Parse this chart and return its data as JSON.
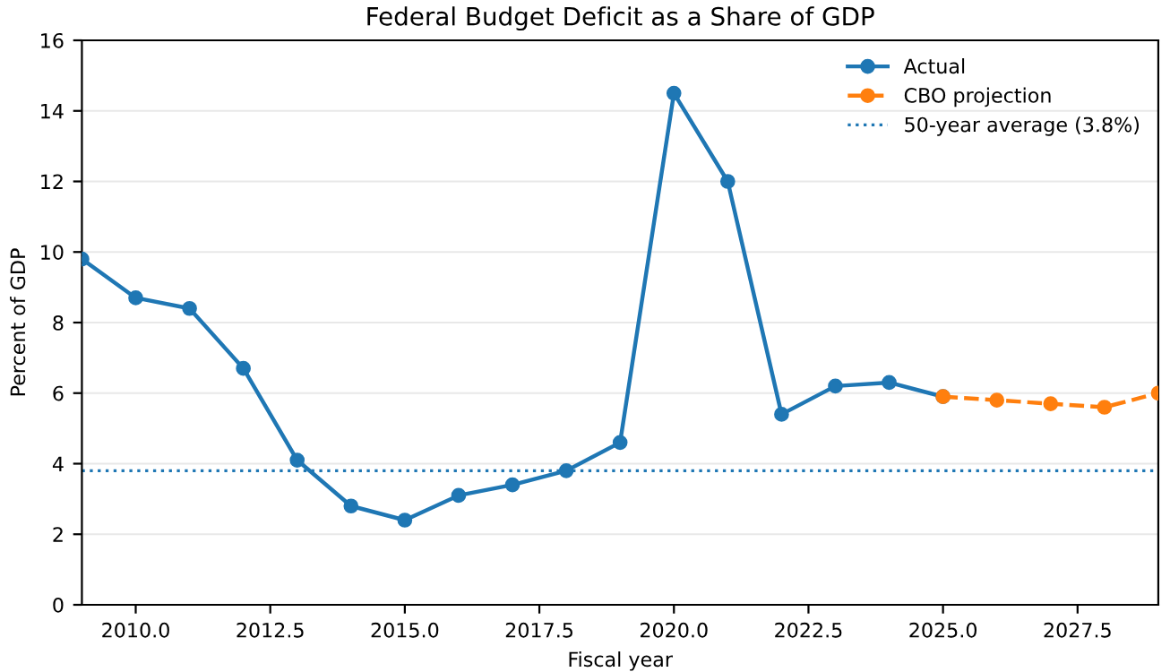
{
  "chart_data": {
    "type": "line",
    "title": "Federal Budget Deficit as a Share of GDP",
    "xlabel": "Fiscal year",
    "ylabel": "Percent of GDP",
    "series": [
      {
        "name": "Actual",
        "color": "#1f77b4",
        "line_style": "solid",
        "x": [
          2009,
          2010,
          2011,
          2012,
          2013,
          2014,
          2015,
          2016,
          2017,
          2018,
          2019,
          2020,
          2021,
          2022,
          2023,
          2024,
          2025
        ],
        "values": [
          9.8,
          8.7,
          8.4,
          6.7,
          4.1,
          2.8,
          2.4,
          3.1,
          3.4,
          3.8,
          4.6,
          14.5,
          12.0,
          5.4,
          6.2,
          6.3,
          5.9
        ]
      },
      {
        "name": "CBO projection",
        "color": "#ff7f0e",
        "line_style": "dashed",
        "x": [
          2025,
          2026,
          2027,
          2028,
          2029
        ],
        "values": [
          5.9,
          5.8,
          5.7,
          5.6,
          6.0
        ]
      }
    ],
    "marker": "circle",
    "ref_lines": [
      {
        "axis": "y",
        "value": 3.8,
        "label": "50-year average (3.8%)",
        "color": "#1f77b4",
        "line_style": "dotted"
      }
    ],
    "xlim": [
      2009,
      2029
    ],
    "xticks": [
      {
        "value": 2010,
        "label": "2010.0"
      },
      {
        "value": 2012.5,
        "label": "2012.5"
      },
      {
        "value": 2015,
        "label": "2015.0"
      },
      {
        "value": 2017.5,
        "label": "2017.5"
      },
      {
        "value": 2020,
        "label": "2020.0"
      },
      {
        "value": 2022.5,
        "label": "2022.5"
      },
      {
        "value": 2025,
        "label": "2025.0"
      },
      {
        "value": 2027.5,
        "label": "2027.5"
      }
    ],
    "ylim": [
      0,
      16
    ],
    "yticks": [
      0,
      2,
      4,
      6,
      8,
      10,
      12,
      14,
      16
    ],
    "grid": "y",
    "legend": "top right"
  }
}
